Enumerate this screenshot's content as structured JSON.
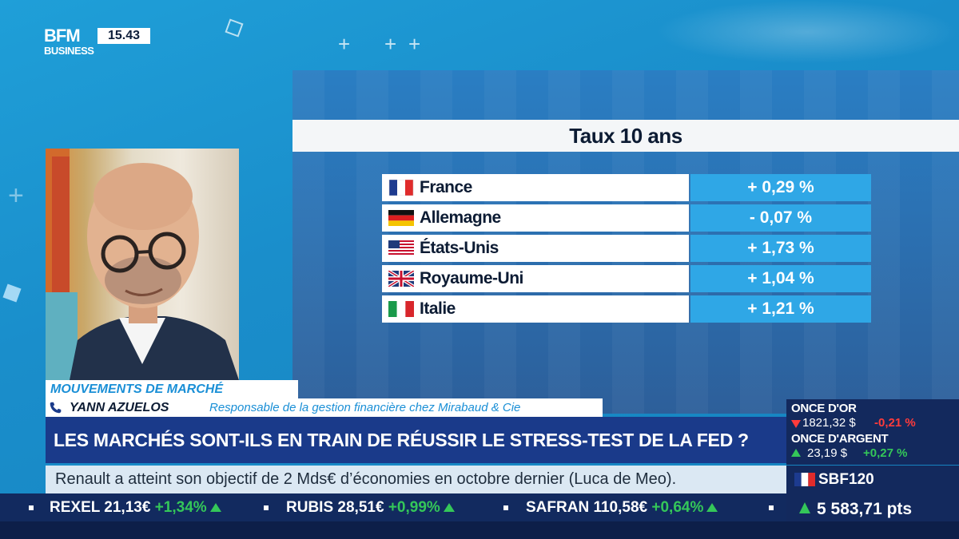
{
  "channel": {
    "logo_main": "BFM",
    "logo_sub": "BUSINESS",
    "clock": "15.43"
  },
  "panel": {
    "title": "Taux 10 ans",
    "rates": [
      {
        "country": "France",
        "value": "+ 0,29 %",
        "flag": "france-flag-icon"
      },
      {
        "country": "Allemagne",
        "value": "- 0,07 %",
        "flag": "germany-flag-icon"
      },
      {
        "country": "États-Unis",
        "value": "+ 1,73 %",
        "flag": "usa-flag-icon"
      },
      {
        "country": "Royaume-Uni",
        "value": "+ 1,04 %",
        "flag": "uk-flag-icon"
      },
      {
        "country": "Italie",
        "value": "+ 1,21 %",
        "flag": "italy-flag-icon"
      }
    ]
  },
  "lower_third": {
    "show": "MOUVEMENTS DE MARCHÉ",
    "guest_name": "YANN AZUELOS",
    "guest_role": "Responsable de la gestion financière chez Mirabaud & Cie",
    "headline": "LES MARCHÉS SONT-ILS EN TRAIN DE RÉUSSIR LE STRESS-TEST DE LA FED ?",
    "news": "Renault a atteint son objectif de 2 Mds€ d’économies en octobre dernier (Luca de Meo)."
  },
  "market": {
    "gold_label": "ONCE D'OR",
    "gold_value": "1821,32 $",
    "gold_change": "-0,21 %",
    "silver_label": "ONCE D'ARGENT",
    "silver_value": "23,19 $",
    "silver_change": "+0,27 %",
    "index1": "SBF120",
    "index2": "5 583,71 pts",
    "colors": {
      "down": "#ff3b3b",
      "up": "#34c759"
    }
  },
  "ticker": {
    "items": [
      {
        "name": "REXEL",
        "price": "21,13€",
        "change": "+1,34%"
      },
      {
        "name": "RUBIS",
        "price": "28,51€",
        "change": "+0,99%"
      },
      {
        "name": "SAFRAN",
        "price": "110,58€",
        "change": "+0,64%"
      }
    ]
  }
}
